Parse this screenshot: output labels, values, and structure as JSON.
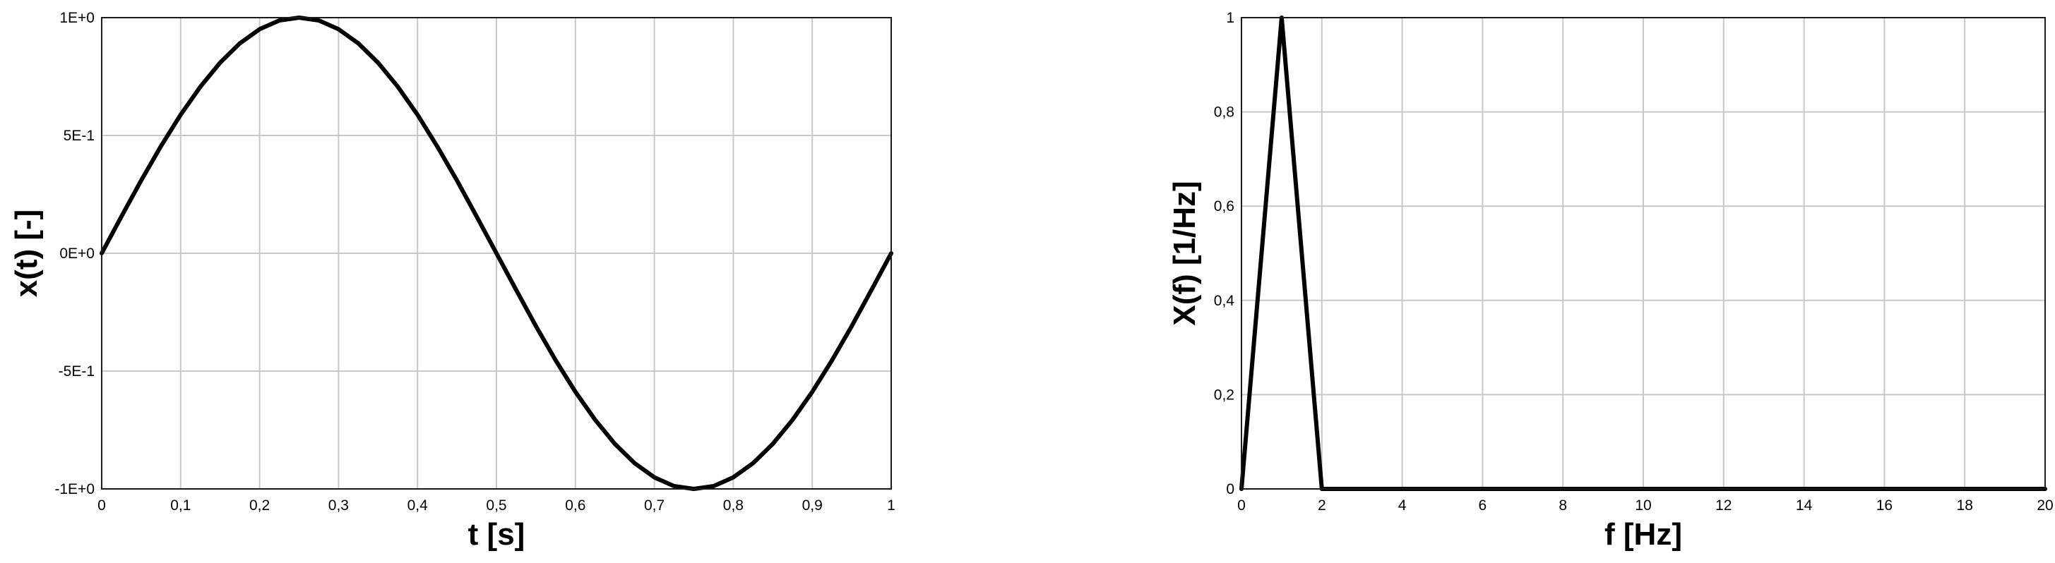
{
  "chart_data": [
    {
      "type": "line",
      "xlabel": "t [s]",
      "ylabel": "x(t) [-]",
      "xlim": [
        0,
        1
      ],
      "ylim": [
        -1,
        1
      ],
      "xticks": [
        0,
        0.1,
        0.2,
        0.3,
        0.4,
        0.5,
        0.6,
        0.7,
        0.8,
        0.9,
        1
      ],
      "xtick_labels": [
        "0",
        "0,1",
        "0,2",
        "0,3",
        "0,4",
        "0,5",
        "0,6",
        "0,7",
        "0,8",
        "0,9",
        "1"
      ],
      "yticks": [
        1,
        0.5,
        0,
        -0.5,
        -1
      ],
      "ytick_labels": [
        "1E+0",
        "5E-1",
        "0E+0",
        "-5E-1",
        "-1E+0"
      ],
      "grid": true,
      "series": [
        {
          "x": [
            0,
            0.025,
            0.05,
            0.075,
            0.1,
            0.125,
            0.15,
            0.175,
            0.2,
            0.225,
            0.25,
            0.275,
            0.3,
            0.325,
            0.35,
            0.375,
            0.4,
            0.425,
            0.45,
            0.475,
            0.5,
            0.525,
            0.55,
            0.575,
            0.6,
            0.625,
            0.65,
            0.675,
            0.7,
            0.725,
            0.75,
            0.775,
            0.8,
            0.825,
            0.85,
            0.875,
            0.9,
            0.925,
            0.95,
            0.975,
            1
          ],
          "y": [
            0,
            0.156,
            0.309,
            0.454,
            0.588,
            0.707,
            0.809,
            0.891,
            0.951,
            0.988,
            1,
            0.988,
            0.951,
            0.891,
            0.809,
            0.707,
            0.588,
            0.454,
            0.309,
            0.156,
            0,
            -0.156,
            -0.309,
            -0.454,
            -0.588,
            -0.707,
            -0.809,
            -0.891,
            -0.951,
            -0.988,
            -1,
            -0.988,
            -0.951,
            -0.891,
            -0.809,
            -0.707,
            -0.588,
            -0.454,
            -0.309,
            -0.156,
            0
          ]
        }
      ]
    },
    {
      "type": "line",
      "xlabel": "f [Hz]",
      "ylabel": "X(f) [1/Hz]",
      "xlim": [
        0,
        20
      ],
      "ylim": [
        0,
        1
      ],
      "xticks": [
        0,
        2,
        4,
        6,
        8,
        10,
        12,
        14,
        16,
        18,
        20
      ],
      "xtick_labels": [
        "0",
        "2",
        "4",
        "6",
        "8",
        "10",
        "12",
        "14",
        "16",
        "18",
        "20"
      ],
      "yticks": [
        1,
        0.8,
        0.6,
        0.4,
        0.2,
        0
      ],
      "ytick_labels": [
        "1",
        "0,8",
        "0,6",
        "0,4",
        "0,2",
        "0"
      ],
      "grid": true,
      "series": [
        {
          "x": [
            0,
            1,
            2,
            3,
            4,
            5,
            6,
            7,
            8,
            9,
            10,
            11,
            12,
            13,
            14,
            15,
            16,
            17,
            18,
            19,
            20
          ],
          "y": [
            0,
            1,
            0,
            0,
            0,
            0,
            0,
            0,
            0,
            0,
            0,
            0,
            0,
            0,
            0,
            0,
            0,
            0,
            0,
            0,
            0
          ]
        }
      ]
    }
  ]
}
